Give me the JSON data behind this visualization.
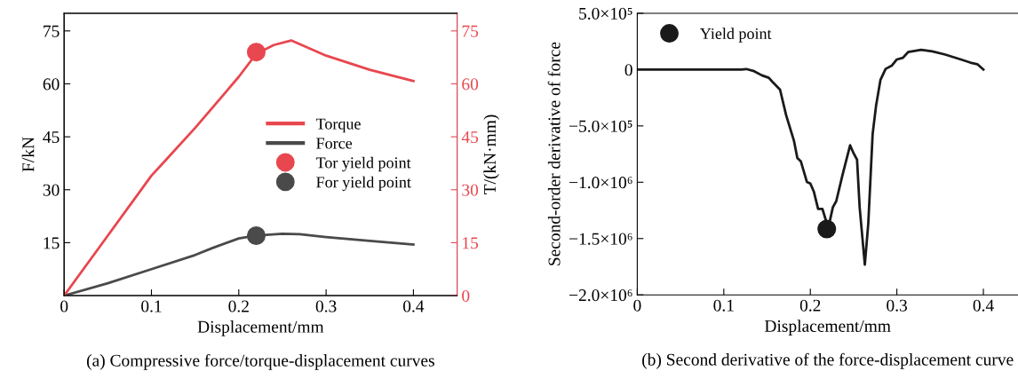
{
  "chart_data": [
    {
      "type": "line",
      "title": "(a) Compressive force/torque-displacement curves",
      "xlabel": "Displacement/mm",
      "ylabel": "F/kN",
      "y2label": "T/(kN·mm)",
      "xlim": [
        0,
        0.45
      ],
      "xticks": [
        0,
        0.1,
        0.2,
        0.3,
        0.4
      ],
      "ylim": [
        0,
        80
      ],
      "yticks": [
        15,
        30,
        45,
        60,
        75
      ],
      "y2lim": [
        0,
        80
      ],
      "y2ticks": [
        0,
        15,
        30,
        45,
        60,
        75
      ],
      "legend": "right",
      "grid": false,
      "series": [
        {
          "name": "Torque",
          "axis": "y2",
          "color": "#e8474f",
          "x": [
            0,
            0.05,
            0.1,
            0.113,
            0.15,
            0.2,
            0.22,
            0.24,
            0.26,
            0.3,
            0.35,
            0.4
          ],
          "values": [
            0,
            17,
            34,
            37.5,
            47.5,
            62,
            68.5,
            71,
            72.3,
            68,
            64,
            60.8
          ]
        },
        {
          "name": "Force",
          "axis": "y",
          "color": "#4a4a4a",
          "x": [
            0,
            0.05,
            0.1,
            0.15,
            0.17,
            0.2,
            0.22,
            0.25,
            0.27,
            0.3,
            0.35,
            0.4
          ],
          "values": [
            0,
            3.5,
            7.5,
            11.5,
            13.5,
            16.2,
            17,
            17.5,
            17.4,
            16.6,
            15.5,
            14.5
          ]
        },
        {
          "name": "Tor yield point",
          "type": "scatter",
          "axis": "y2",
          "color": "#e8474f",
          "x": [
            0.22
          ],
          "values": [
            69
          ]
        },
        {
          "name": "For yield point",
          "type": "scatter",
          "axis": "y",
          "color": "#4a4a4a",
          "x": [
            0.22
          ],
          "values": [
            17
          ]
        }
      ]
    },
    {
      "type": "line",
      "title": "(b) Second derivative of the force-displacement curve",
      "xlabel": "Displacement/mm",
      "ylabel": "Second-order derivative of force",
      "xlim": [
        0,
        0.44
      ],
      "xticks": [
        0,
        0.1,
        0.2,
        0.3,
        0.4
      ],
      "ylim": [
        -2000000,
        500000
      ],
      "yticks": [
        {
          "value": 500000,
          "label": "5.0×10⁵"
        },
        0,
        {
          "value": -500000,
          "label": "−5.0×10⁵"
        },
        {
          "value": -1000000,
          "label": "−1.0×10⁶"
        },
        {
          "value": -1500000,
          "label": "−1.5×10⁶"
        },
        {
          "value": -2000000,
          "label": "−2.0×10⁶"
        }
      ],
      "legend": "top left",
      "grid": false,
      "series": [
        {
          "color": "#1a1a1a",
          "x": [
            0,
            0.05,
            0.1,
            0.12,
            0.126,
            0.135,
            0.144,
            0.152,
            0.156,
            0.159,
            0.165,
            0.172,
            0.181,
            0.185,
            0.189,
            0.196,
            0.2,
            0.204,
            0.209,
            0.214,
            0.219,
            0.222,
            0.226,
            0.23,
            0.237,
            0.246,
            0.25,
            0.254,
            0.257,
            0.263,
            0.267,
            0.272,
            0.276,
            0.281,
            0.287,
            0.294,
            0.3,
            0.307,
            0.313,
            0.328,
            0.341,
            0.356,
            0.374,
            0.385,
            0.393,
            0.4
          ],
          "values": [
            0,
            0,
            0,
            0,
            5000,
            -14000,
            -51000,
            -73000,
            -107000,
            -130000,
            -178000,
            -404000,
            -630000,
            -785000,
            -814000,
            -997000,
            -1011000,
            -1082000,
            -1237000,
            -1237000,
            -1364000,
            -1364000,
            -1223000,
            -1167000,
            -941000,
            -672000,
            -743000,
            -800000,
            -1223000,
            -1732000,
            -1364000,
            -573000,
            -319000,
            -93000,
            6000,
            34000,
            90000,
            105000,
            155000,
            175000,
            161000,
            133000,
            90000,
            62000,
            48000,
            0
          ]
        },
        {
          "name": "Yield point",
          "type": "scatter",
          "color": "#1a1a1a",
          "x": [
            0.219
          ],
          "values": [
            -1415000
          ]
        }
      ]
    }
  ]
}
